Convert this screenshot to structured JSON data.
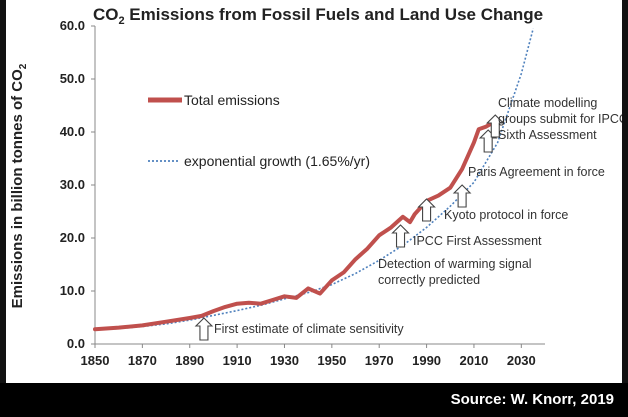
{
  "chart_data": {
    "type": "line",
    "title": "CO2 Emissions from Fossil Fuels and Land Use Change",
    "title_parts": {
      "prefix": "CO",
      "subscript": "2",
      "suffix": " Emissions from Fossil Fuels and Land Use Change"
    },
    "xlabel": "",
    "ylabel": "Emissions in billion tonnes of CO2",
    "ylabel_parts": {
      "prefix": "Emissions in billion tonnes of CO",
      "subscript": "2"
    },
    "xlim": [
      1850,
      2040
    ],
    "ylim": [
      0,
      60
    ],
    "xticks": [
      "1850",
      "1870",
      "1890",
      "1910",
      "1930",
      "1950",
      "1970",
      "1990",
      "2010",
      "2030"
    ],
    "yticks": [
      "0.0",
      "10.0",
      "20.0",
      "30.0",
      "40.0",
      "50.0",
      "60.0"
    ],
    "grid": false,
    "legend": [
      {
        "label": "Total emissions",
        "color": "#c0504d",
        "style": "solid"
      },
      {
        "label": "exponential growth (1.65%/yr)",
        "color": "#4f81bd",
        "style": "dotted"
      }
    ],
    "series": [
      {
        "name": "Total emissions",
        "color": "#c0504d",
        "x": [
          1850,
          1860,
          1870,
          1880,
          1890,
          1895,
          1900,
          1905,
          1910,
          1915,
          1920,
          1925,
          1930,
          1935,
          1940,
          1945,
          1950,
          1955,
          1960,
          1965,
          1970,
          1975,
          1980,
          1983,
          1985,
          1990,
          1995,
          2000,
          2005,
          2010,
          2012,
          2015,
          2017,
          2019
        ],
        "y": [
          2.8,
          3.1,
          3.5,
          4.2,
          4.9,
          5.3,
          6.2,
          7.0,
          7.6,
          7.8,
          7.6,
          8.3,
          9.0,
          8.7,
          10.5,
          9.5,
          12.0,
          13.5,
          16.0,
          18.0,
          20.5,
          22.0,
          24.0,
          23.0,
          24.5,
          27.0,
          28.0,
          29.5,
          33.0,
          38.0,
          40.5,
          41.0,
          41.5,
          42.0
        ]
      },
      {
        "name": "exponential growth (1.65%/yr)",
        "color": "#4f81bd",
        "x": [
          1850,
          1860,
          1870,
          1880,
          1890,
          1900,
          1910,
          1920,
          1930,
          1940,
          1950,
          1960,
          1970,
          1980,
          1990,
          2000,
          2010,
          2020,
          2030,
          2035
        ],
        "y": [
          2.7,
          2.9,
          3.3,
          3.8,
          4.5,
          5.4,
          6.3,
          7.3,
          8.5,
          9.7,
          11.2,
          13.3,
          15.8,
          18.6,
          22.0,
          26.0,
          30.5,
          38.0,
          51.0,
          59.5
        ]
      }
    ],
    "annotations": [
      {
        "id": "first-estimate",
        "text": "First estimate of climate sensitivity",
        "year": 1896
      },
      {
        "id": "detection",
        "lines": [
          "Detection of warming signal",
          "correctly predicted"
        ],
        "year": 1979
      },
      {
        "id": "ipcc-first",
        "text": "IPCC First Assessment",
        "year": 1990
      },
      {
        "id": "kyoto",
        "text": "Kyoto protocol in force",
        "year": 2005
      },
      {
        "id": "paris",
        "text": "Paris Agreement in force",
        "year": 2016
      },
      {
        "id": "ipcc-sixth",
        "lines": [
          "Climate modelling",
          "groups submit for IPCC",
          "Sixth Assessment"
        ],
        "year": 2019
      }
    ]
  },
  "source": "Source: W. Knorr, 2019"
}
